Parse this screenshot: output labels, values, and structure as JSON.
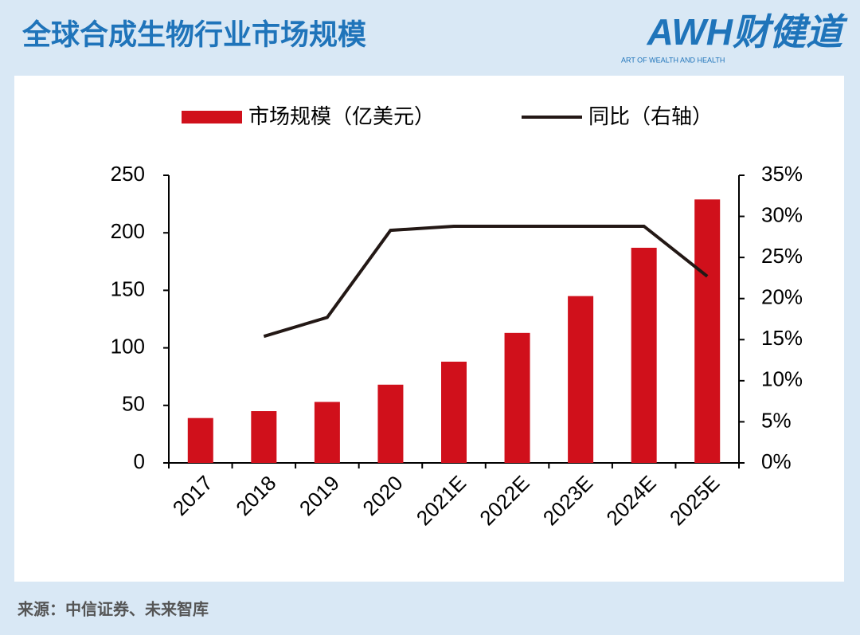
{
  "branding": {
    "logo": "AWH财健道",
    "tagline": "ART OF WEALTH AND HEALTH"
  },
  "source": "来源：中信证券、未来智库",
  "chart_data": {
    "type": "bar-line",
    "title": "全球合成生物行业市场规模",
    "categories": [
      "2017",
      "2018",
      "2019",
      "2020",
      "2021E",
      "2022E",
      "2023E",
      "2024E",
      "2025E"
    ],
    "series": [
      {
        "name": "市场规模（亿美元）",
        "color": "#d0101b",
        "type": "bar",
        "values": [
          39,
          45,
          53,
          68,
          88,
          113,
          145,
          187,
          229
        ]
      },
      {
        "name": "同比（右轴）",
        "color": "#231815",
        "type": "line",
        "axis": "y2",
        "values": [
          null,
          15.4,
          17.7,
          28.3,
          28.8,
          28.8,
          28.8,
          28.8,
          22.7
        ]
      }
    ],
    "ylim": [
      0,
      250
    ],
    "yticks": [
      0,
      50,
      100,
      150,
      200,
      250
    ],
    "y2lim": [
      0,
      35
    ],
    "y2ticks": [
      {
        "value": 0,
        "label": "0%"
      },
      {
        "value": 5,
        "label": "5%"
      },
      {
        "value": 10,
        "label": "10%"
      },
      {
        "value": 15,
        "label": "15%"
      },
      {
        "value": 20,
        "label": "20%"
      },
      {
        "value": 25,
        "label": "25%"
      },
      {
        "value": 30,
        "label": "30%"
      },
      {
        "value": 35,
        "label": "35%"
      }
    ],
    "legend": "top",
    "grid": false
  }
}
